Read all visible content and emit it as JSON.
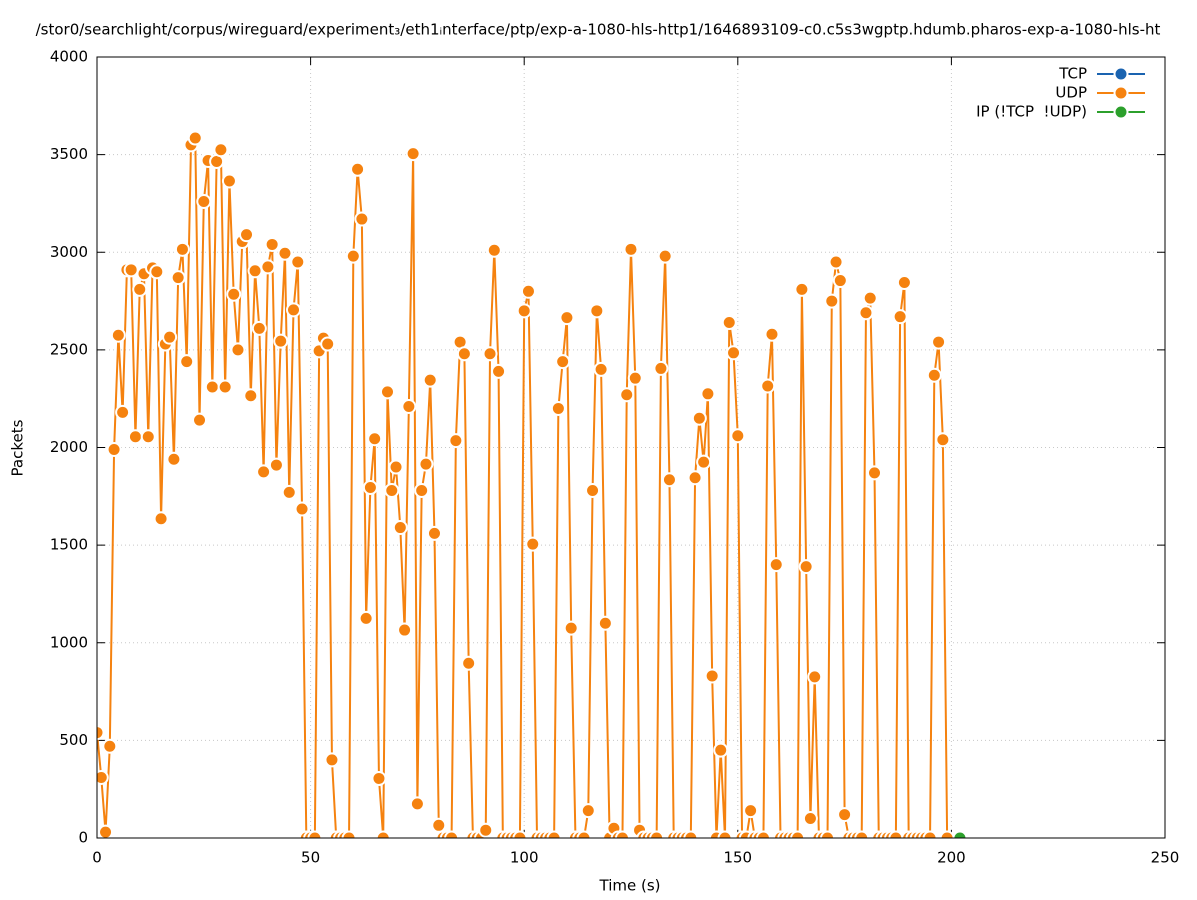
{
  "chart_data": {
    "type": "line",
    "title": "/stor0/searchlight/corpus/wireguard/experiment₃/eth1ᵢnterface/ptp/exp-a-1080-hls-http1/1646893109-c0.c5s3wgptp.hdumb.pharos-exp-a-1080-hls-ht",
    "x_label": "Time (s)",
    "y_label": "Packets",
    "xlim": [
      0,
      250
    ],
    "xticks": [
      0,
      50,
      100,
      150,
      200,
      250
    ],
    "ylim": [
      0,
      4000
    ],
    "yticks": [
      0,
      500,
      1000,
      1500,
      2000,
      2500,
      3000,
      3500,
      4000
    ],
    "grid": true,
    "legend": "top-right",
    "series": [
      {
        "name": "TCP",
        "color": "#1a63b0",
        "x": [],
        "values": []
      },
      {
        "name": "UDP",
        "color": "#f5820f",
        "x": [
          0,
          1,
          2,
          3,
          4,
          5,
          6,
          7,
          8,
          9,
          10,
          11,
          12,
          13,
          14,
          15,
          16,
          17,
          18,
          19,
          20,
          21,
          22,
          23,
          24,
          25,
          26,
          27,
          28,
          29,
          30,
          31,
          32,
          33,
          34,
          35,
          36,
          37,
          38,
          39,
          40,
          41,
          42,
          43,
          44,
          45,
          46,
          47,
          48,
          49,
          50,
          51,
          52,
          53,
          54,
          55,
          56,
          57,
          58,
          59,
          60,
          61,
          62,
          63,
          64,
          65,
          66,
          67,
          68,
          69,
          70,
          71,
          72,
          73,
          74,
          75,
          76,
          77,
          78,
          79,
          80,
          81,
          82,
          83,
          84,
          85,
          86,
          87,
          88,
          89,
          90,
          91,
          92,
          93,
          94,
          95,
          96,
          97,
          98,
          99,
          100,
          101,
          102,
          103,
          104,
          105,
          106,
          107,
          108,
          109,
          110,
          111,
          112,
          113,
          114,
          115,
          116,
          117,
          118,
          119,
          120,
          121,
          122,
          123,
          124,
          125,
          126,
          127,
          128,
          129,
          130,
          131,
          132,
          133,
          134,
          135,
          136,
          137,
          138,
          139,
          140,
          141,
          142,
          143,
          144,
          145,
          146,
          147,
          148,
          149,
          150,
          151,
          152,
          153,
          154,
          155,
          156,
          157,
          158,
          159,
          160,
          161,
          162,
          163,
          164,
          165,
          166,
          167,
          168,
          169,
          170,
          171,
          172,
          173,
          174,
          175,
          176,
          177,
          178,
          179,
          180,
          181,
          182,
          183,
          184,
          185,
          186,
          187,
          188,
          189,
          190,
          191,
          192,
          193,
          194,
          195,
          196,
          197,
          198,
          199
        ],
        "values": [
          540,
          310,
          30,
          470,
          1990,
          2575,
          2180,
          2910,
          2910,
          2055,
          2810,
          2890,
          2055,
          2920,
          2900,
          1635,
          2530,
          2565,
          1940,
          2870,
          3015,
          2440,
          3550,
          3585,
          2140,
          3260,
          3470,
          2310,
          3465,
          3525,
          2310,
          3365,
          2785,
          2500,
          3055,
          3090,
          2265,
          2905,
          2610,
          1875,
          2925,
          3040,
          1910,
          2545,
          2995,
          1770,
          2705,
          2950,
          1685,
          0,
          0,
          0,
          2495,
          2560,
          2530,
          400,
          0,
          0,
          0,
          0,
          2980,
          3425,
          3170,
          1125,
          1795,
          2045,
          305,
          0,
          2285,
          1780,
          1900,
          1590,
          1065,
          2210,
          3505,
          175,
          1780,
          1915,
          2345,
          1560,
          65,
          0,
          0,
          0,
          2035,
          2540,
          2480,
          895,
          0,
          0,
          0,
          40,
          2480,
          3010,
          2390,
          0,
          0,
          0,
          0,
          0,
          2700,
          2800,
          1505,
          0,
          0,
          0,
          0,
          0,
          2200,
          2440,
          2665,
          1075,
          0,
          0,
          0,
          140,
          1780,
          2700,
          2400,
          1100,
          0,
          50,
          0,
          0,
          2270,
          3015,
          2355,
          40,
          0,
          0,
          0,
          0,
          2405,
          2980,
          1835,
          0,
          0,
          0,
          0,
          0,
          1845,
          2150,
          1925,
          2275,
          830,
          0,
          450,
          0,
          2640,
          2485,
          2060,
          0,
          0,
          140,
          0,
          0,
          0,
          2315,
          2580,
          1400,
          0,
          0,
          0,
          0,
          0,
          2810,
          1390,
          100,
          825,
          0,
          0,
          0,
          2750,
          2950,
          2855,
          120,
          0,
          0,
          0,
          0,
          2690,
          2765,
          1870,
          0,
          0,
          0,
          0,
          0,
          2670,
          2845,
          0,
          0,
          0,
          0,
          0,
          0,
          2370,
          2540,
          2040,
          0
        ]
      },
      {
        "name": "IP (!TCP  !UDP)",
        "color": "#2ca02c",
        "x": [
          202
        ],
        "values": [
          0
        ]
      }
    ]
  }
}
